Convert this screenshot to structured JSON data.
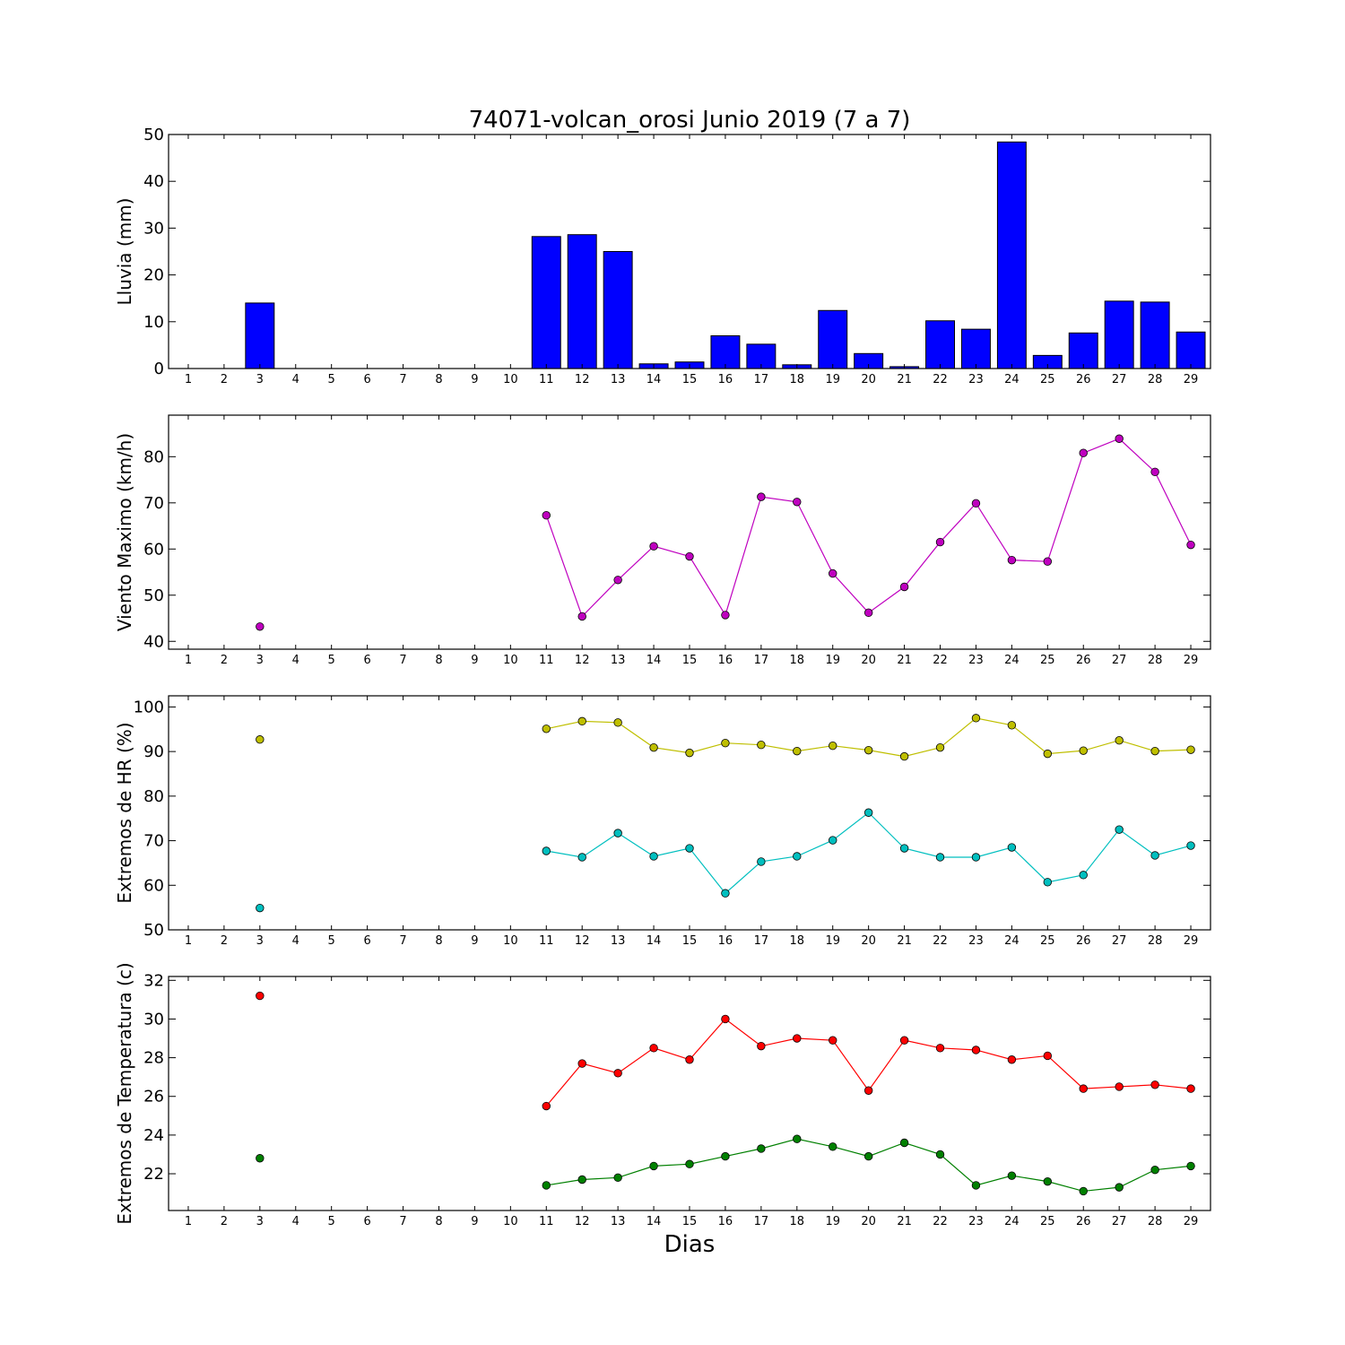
{
  "chart_data": [
    {
      "type": "bar",
      "title": "74071-volcan_orosi Junio 2019  (7 a 7)",
      "ylabel": "Lluvia (mm)",
      "xlabel": "",
      "categories": [
        "1",
        "2",
        "3",
        "4",
        "5",
        "6",
        "7",
        "8",
        "9",
        "10",
        "11",
        "12",
        "13",
        "14",
        "15",
        "16",
        "17",
        "18",
        "19",
        "20",
        "21",
        "22",
        "23",
        "24",
        "25",
        "26",
        "27",
        "28",
        "29"
      ],
      "ylim": [
        0,
        50
      ],
      "yticks": [
        0,
        10,
        20,
        30,
        40,
        50
      ],
      "series": [
        {
          "color": "#0000ff",
          "values": [
            null,
            null,
            14.0,
            null,
            null,
            null,
            null,
            null,
            null,
            null,
            28.2,
            28.6,
            25.0,
            1.0,
            1.4,
            7.0,
            5.2,
            0.8,
            12.4,
            3.2,
            0.4,
            10.2,
            8.4,
            48.4,
            2.8,
            7.6,
            14.4,
            14.2,
            7.8
          ]
        }
      ]
    },
    {
      "type": "line",
      "title": "",
      "ylabel": "Viento Maximo (km/h)",
      "xlabel": "",
      "categories": [
        "1",
        "2",
        "3",
        "4",
        "5",
        "6",
        "7",
        "8",
        "9",
        "10",
        "11",
        "12",
        "13",
        "14",
        "15",
        "16",
        "17",
        "18",
        "19",
        "20",
        "21",
        "22",
        "23",
        "24",
        "25",
        "26",
        "27",
        "28",
        "29"
      ],
      "ylim": [
        38.3,
        89
      ],
      "yticks": [
        40,
        50,
        60,
        70,
        80
      ],
      "series": [
        {
          "color": "#bf00bf",
          "values": [
            null,
            null,
            43.2,
            null,
            null,
            null,
            null,
            null,
            null,
            null,
            67.3,
            45.4,
            53.3,
            60.6,
            58.4,
            45.7,
            71.3,
            70.2,
            54.7,
            46.2,
            51.8,
            61.5,
            69.9,
            57.6,
            57.3,
            80.8,
            83.9,
            76.7,
            60.9
          ]
        }
      ]
    },
    {
      "type": "line",
      "title": "",
      "ylabel": "Extremos de HR (%)",
      "xlabel": "",
      "categories": [
        "1",
        "2",
        "3",
        "4",
        "5",
        "6",
        "7",
        "8",
        "9",
        "10",
        "11",
        "12",
        "13",
        "14",
        "15",
        "16",
        "17",
        "18",
        "19",
        "20",
        "21",
        "22",
        "23",
        "24",
        "25",
        "26",
        "27",
        "28",
        "29"
      ],
      "ylim": [
        50,
        102.5
      ],
      "yticks": [
        50,
        60,
        70,
        80,
        90,
        100
      ],
      "series": [
        {
          "color": "#bfbf00",
          "values": [
            null,
            null,
            92.7,
            null,
            null,
            null,
            null,
            null,
            null,
            null,
            95.1,
            96.8,
            96.5,
            90.9,
            89.7,
            91.9,
            91.5,
            90.1,
            91.3,
            90.3,
            88.9,
            90.9,
            97.5,
            95.9,
            89.5,
            90.2,
            92.5,
            90.1,
            90.4
          ]
        },
        {
          "color": "#00bfbf",
          "values": [
            null,
            null,
            54.9,
            null,
            null,
            null,
            null,
            null,
            null,
            null,
            67.7,
            66.3,
            71.7,
            66.5,
            68.3,
            58.2,
            65.3,
            66.5,
            70.1,
            76.3,
            68.3,
            66.3,
            66.3,
            68.5,
            60.7,
            62.3,
            72.5,
            66.7,
            68.9
          ]
        }
      ]
    },
    {
      "type": "line",
      "title": "",
      "ylabel": "Extremos de Temperatura (c)",
      "xlabel": "Dias",
      "categories": [
        "1",
        "2",
        "3",
        "4",
        "5",
        "6",
        "7",
        "8",
        "9",
        "10",
        "11",
        "12",
        "13",
        "14",
        "15",
        "16",
        "17",
        "18",
        "19",
        "20",
        "21",
        "22",
        "23",
        "24",
        "25",
        "26",
        "27",
        "28",
        "29"
      ],
      "ylim": [
        20.1,
        32.2
      ],
      "yticks": [
        22,
        24,
        26,
        28,
        30,
        32
      ],
      "series": [
        {
          "color": "#ff0000",
          "values": [
            null,
            null,
            31.2,
            null,
            null,
            null,
            null,
            null,
            null,
            null,
            25.5,
            27.7,
            27.2,
            28.5,
            27.9,
            30.0,
            28.6,
            29.0,
            28.9,
            26.3,
            28.9,
            28.5,
            28.4,
            27.9,
            28.1,
            26.4,
            26.5,
            26.6,
            26.4
          ]
        },
        {
          "color": "#008000",
          "values": [
            null,
            null,
            22.8,
            null,
            null,
            null,
            null,
            null,
            null,
            null,
            21.4,
            21.7,
            21.8,
            22.4,
            22.5,
            22.9,
            23.3,
            23.8,
            23.4,
            22.9,
            23.6,
            23.0,
            21.4,
            21.9,
            21.6,
            21.1,
            21.3,
            22.2,
            22.4
          ]
        }
      ]
    }
  ]
}
